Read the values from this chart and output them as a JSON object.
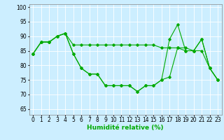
{
  "line1": {
    "x": [
      0,
      1,
      2,
      3,
      4,
      5,
      6,
      7,
      8,
      9,
      10,
      11,
      12,
      13,
      14,
      15,
      16,
      17,
      18,
      19,
      20,
      21,
      22,
      23
    ],
    "y": [
      84,
      88,
      88,
      90,
      91,
      87,
      87,
      87,
      87,
      87,
      87,
      87,
      87,
      87,
      87,
      87,
      86,
      86,
      86,
      86,
      85,
      89,
      79,
      75
    ]
  },
  "line2": {
    "x": [
      0,
      1,
      2,
      3,
      4,
      5,
      6,
      7,
      8,
      9,
      10,
      11,
      12,
      13,
      14,
      15,
      16,
      17,
      18,
      19,
      20,
      21,
      22,
      23
    ],
    "y": [
      84,
      88,
      88,
      90,
      91,
      84,
      79,
      77,
      77,
      73,
      73,
      73,
      73,
      71,
      73,
      73,
      75,
      89,
      94,
      85,
      85,
      89,
      79,
      75
    ]
  },
  "line3": {
    "x": [
      0,
      1,
      2,
      3,
      4,
      5,
      6,
      7,
      8,
      9,
      10,
      11,
      12,
      13,
      14,
      15,
      16,
      17,
      18,
      19,
      20,
      21,
      22,
      23
    ],
    "y": [
      84,
      88,
      88,
      90,
      91,
      84,
      79,
      77,
      77,
      73,
      73,
      73,
      73,
      71,
      73,
      73,
      75,
      76,
      86,
      85,
      85,
      85,
      79,
      75
    ]
  },
  "line_color": "#00aa00",
  "marker": "D",
  "marker_size": 1.8,
  "line_width": 0.8,
  "xlabel": "Humidité relative (%)",
  "xlabel_fontsize": 6.5,
  "xlabel_color": "#00aa00",
  "ylabel_ticks": [
    65,
    70,
    75,
    80,
    85,
    90,
    95,
    100
  ],
  "xlim": [
    -0.5,
    23.5
  ],
  "ylim": [
    63,
    101
  ],
  "background_color": "#cceeff",
  "grid_color": "#ffffff",
  "tick_fontsize": 5.5
}
